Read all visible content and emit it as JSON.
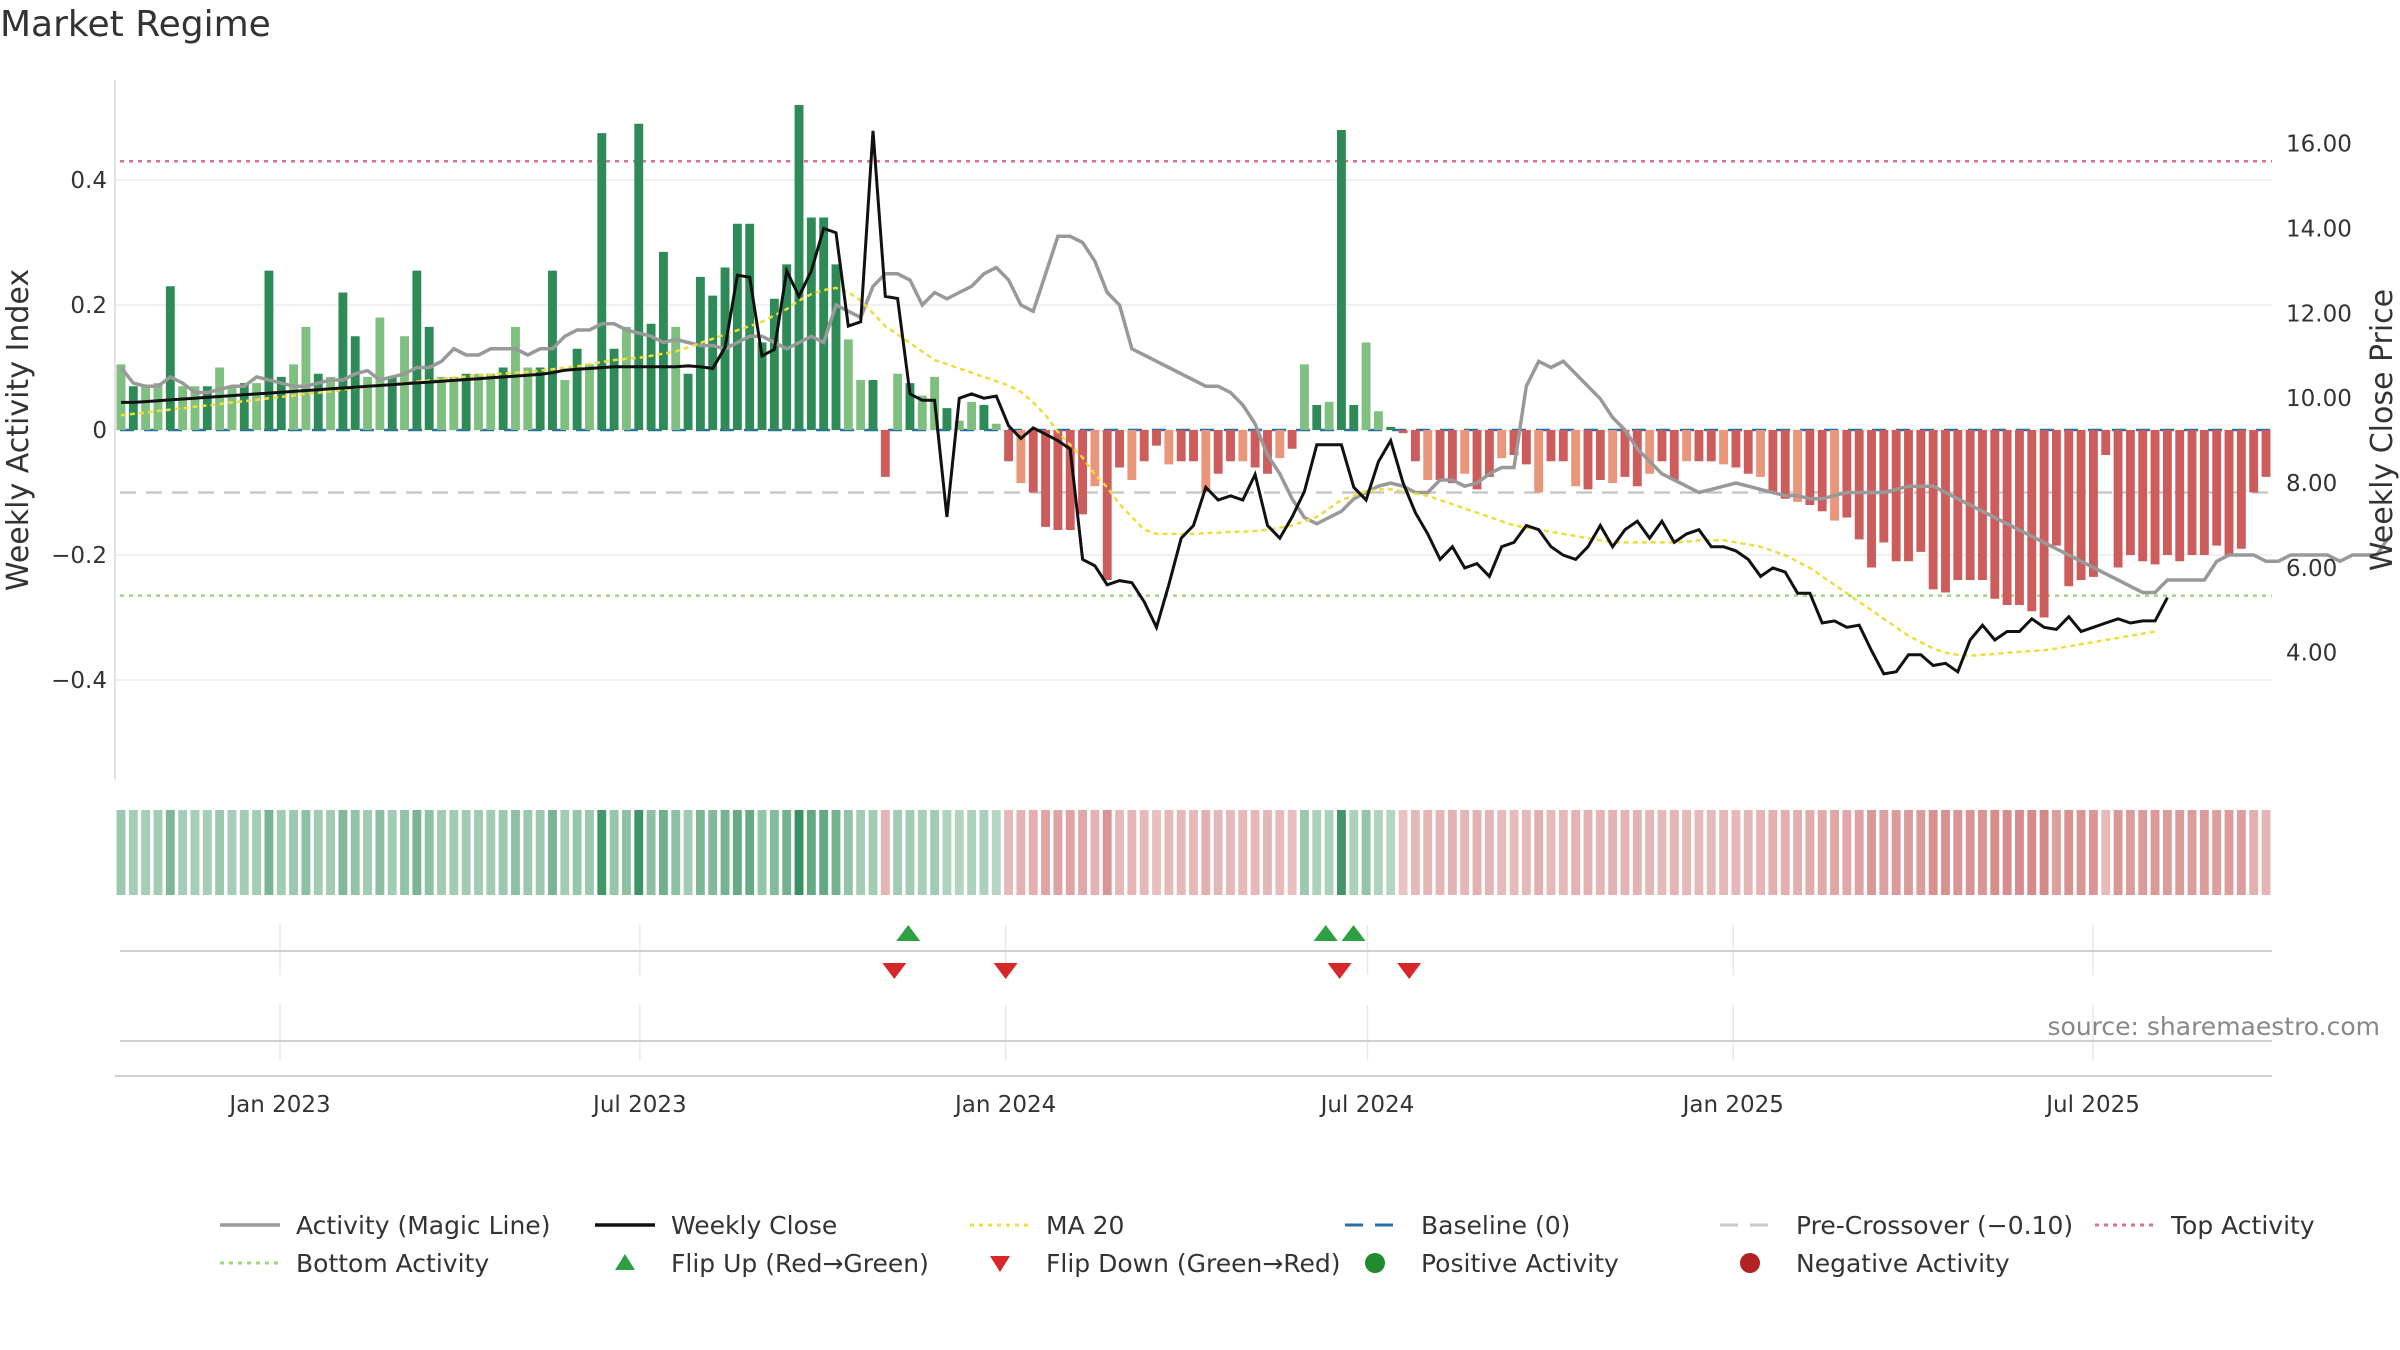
{
  "title": "Market Regime",
  "source": "source: sharemaestro.com",
  "chart_data": {
    "type": "bar",
    "title": "Market Regime",
    "ylabel": "Weekly Activity Index",
    "y2label": "Weekly Close Price",
    "ylim": [
      -0.56,
      0.56
    ],
    "y2lim": [
      1.0,
      17.5
    ],
    "yticks": [
      0.4,
      0.2,
      0,
      -0.2,
      -0.4
    ],
    "ytick_labels": [
      "0.4",
      "0.2",
      "0",
      "−0.2",
      "−0.4"
    ],
    "y2ticks": [
      16,
      14,
      12,
      10,
      8,
      6,
      4
    ],
    "y2tick_labels": [
      "16.00",
      "14.00",
      "12.00",
      "10.00",
      "8.00",
      "6.00",
      "4.00"
    ],
    "x_start": "2022-10-10",
    "x_end": "2025-09-29",
    "xticks": [
      "2023-01-01",
      "2023-07-01",
      "2024-01-01",
      "2024-07-01",
      "2025-01-01",
      "2025-07-01"
    ],
    "xtick_labels": [
      "Jan 2023",
      "Jul 2023",
      "Jan 2024",
      "Jul 2024",
      "Jan 2025",
      "Jul 2025"
    ],
    "grid": true,
    "legend_position": "bottom",
    "reference_lines": {
      "baseline": 0,
      "pre_crossover": -0.1,
      "top_activity": 0.43,
      "bottom_activity": -0.265
    },
    "series": [
      {
        "name": "Activity (Magic Line)",
        "values": [
          0.1,
          0.075,
          0.07,
          0.07,
          0.085,
          0.075,
          0.06,
          0.06,
          0.065,
          0.07,
          0.07,
          0.085,
          0.08,
          0.075,
          0.07,
          0.07,
          0.075,
          0.08,
          0.08,
          0.09,
          0.095,
          0.08,
          0.085,
          0.09,
          0.1,
          0.1,
          0.11,
          0.13,
          0.12,
          0.12,
          0.13,
          0.13,
          0.13,
          0.12,
          0.13,
          0.13,
          0.15,
          0.16,
          0.16,
          0.17,
          0.17,
          0.16,
          0.155,
          0.15,
          0.14,
          0.145,
          0.14,
          0.135,
          0.135,
          0.13,
          0.14,
          0.15,
          0.15,
          0.14,
          0.13,
          0.14,
          0.15,
          0.14,
          0.2,
          0.19,
          0.18,
          0.23,
          0.25,
          0.25,
          0.24,
          0.2,
          0.22,
          0.21,
          0.22,
          0.23,
          0.25,
          0.26,
          0.24,
          0.2,
          0.19,
          0.25,
          0.31,
          0.31,
          0.3,
          0.27,
          0.22,
          0.2,
          0.13,
          0.12,
          0.11,
          0.1,
          0.09,
          0.08,
          0.07,
          0.07,
          0.06,
          0.04,
          0.01,
          -0.04,
          -0.07,
          -0.11,
          -0.14,
          -0.15,
          -0.14,
          -0.13,
          -0.11,
          -0.1,
          -0.09,
          -0.085,
          -0.09,
          -0.1,
          -0.1,
          -0.08,
          -0.08,
          -0.09,
          -0.085,
          -0.07,
          -0.06,
          -0.06,
          0.07,
          0.11,
          0.1,
          0.11,
          0.09,
          0.07,
          0.05,
          0.02,
          0.0,
          -0.03,
          -0.05,
          -0.07,
          -0.08,
          -0.09,
          -0.1,
          -0.095,
          -0.09,
          -0.085,
          -0.09,
          -0.095,
          -0.1,
          -0.105,
          -0.105,
          -0.11,
          -0.11,
          -0.105,
          -0.1,
          -0.1,
          -0.1,
          -0.1,
          -0.095,
          -0.09,
          -0.09,
          -0.09,
          -0.1,
          -0.11,
          -0.12,
          -0.13,
          -0.14,
          -0.15,
          -0.16,
          -0.17,
          -0.18,
          -0.19,
          -0.2,
          -0.21,
          -0.22,
          -0.23,
          -0.24,
          -0.25,
          -0.26,
          -0.26,
          -0.24,
          -0.24,
          -0.24,
          -0.24,
          -0.21,
          -0.2,
          -0.2,
          -0.2,
          -0.21,
          -0.21,
          -0.2,
          -0.2,
          -0.2,
          -0.2,
          -0.21,
          -0.2,
          -0.2,
          -0.2,
          -0.17
        ]
      },
      {
        "name": "Weekly Close",
        "values": [
          9.9,
          9.9,
          9.92,
          9.94,
          9.96,
          9.98,
          10.0,
          10.02,
          10.04,
          10.06,
          10.08,
          10.1,
          10.12,
          10.14,
          10.16,
          10.18,
          10.2,
          10.22,
          10.24,
          10.26,
          10.28,
          10.3,
          10.32,
          10.34,
          10.36,
          10.38,
          10.4,
          10.42,
          10.44,
          10.46,
          10.48,
          10.5,
          10.52,
          10.54,
          10.56,
          10.6,
          10.66,
          10.68,
          10.7,
          10.72,
          10.74,
          10.74,
          10.74,
          10.74,
          10.74,
          10.74,
          10.76,
          10.74,
          10.7,
          11.2,
          12.9,
          12.85,
          11.0,
          11.15,
          13.0,
          12.4,
          13.0,
          14.0,
          13.9,
          11.7,
          11.8,
          16.3,
          12.4,
          12.35,
          10.1,
          9.95,
          9.95,
          7.2,
          10.0,
          10.1,
          10.0,
          10.05,
          9.35,
          9.05,
          9.3,
          9.15,
          9.0,
          8.8,
          6.2,
          6.05,
          5.6,
          5.7,
          5.65,
          5.2,
          4.6,
          5.6,
          6.7,
          7.0,
          7.9,
          7.6,
          7.7,
          7.6,
          8.2,
          7.0,
          6.7,
          7.2,
          7.8,
          8.9,
          8.9,
          8.9,
          7.9,
          7.6,
          8.5,
          9.0,
          8.0,
          7.3,
          6.8,
          6.2,
          6.5,
          6.0,
          6.1,
          5.8,
          6.5,
          6.6,
          7.0,
          6.9,
          6.5,
          6.3,
          6.2,
          6.5,
          7.0,
          6.5,
          6.9,
          7.1,
          6.7,
          7.1,
          6.6,
          6.8,
          6.9,
          6.5,
          6.5,
          6.4,
          6.2,
          5.8,
          6.0,
          5.9,
          5.4,
          5.4,
          4.7,
          4.75,
          4.6,
          4.65,
          4.05,
          3.5,
          3.55,
          3.95,
          3.95,
          3.7,
          3.75,
          3.55,
          4.3,
          4.65,
          4.3,
          4.5,
          4.5,
          4.8,
          4.6,
          4.55,
          4.85,
          4.5,
          4.6,
          4.7,
          4.8,
          4.7,
          4.75,
          4.75,
          5.3
        ]
      },
      {
        "name": "MA 20",
        "values": [
          9.6,
          9.63,
          9.66,
          9.7,
          9.73,
          9.76,
          9.8,
          9.83,
          9.86,
          9.9,
          9.93,
          9.96,
          10.0,
          10.03,
          10.06,
          10.1,
          10.13,
          10.16,
          10.2,
          10.24,
          10.27,
          10.3,
          10.33,
          10.36,
          10.39,
          10.42,
          10.45,
          10.48,
          10.51,
          10.54,
          10.56,
          10.58,
          10.6,
          10.62,
          10.65,
          10.68,
          10.72,
          10.75,
          10.8,
          10.85,
          10.9,
          10.93,
          10.95,
          11.0,
          11.05,
          11.1,
          11.2,
          11.3,
          11.4,
          11.5,
          11.6,
          11.7,
          11.8,
          11.95,
          12.1,
          12.3,
          12.45,
          12.55,
          12.6,
          12.5,
          12.3,
          12.0,
          11.7,
          11.5,
          11.3,
          11.1,
          10.9,
          10.8,
          10.7,
          10.6,
          10.5,
          10.4,
          10.3,
          10.15,
          9.9,
          9.6,
          9.2,
          8.9,
          8.6,
          8.2,
          7.9,
          7.5,
          7.2,
          6.9,
          6.8,
          6.8,
          6.8,
          6.8,
          6.82,
          6.83,
          6.85,
          6.85,
          6.87,
          6.9,
          6.95,
          7.0,
          7.1,
          7.2,
          7.4,
          7.6,
          7.7,
          7.8,
          7.85,
          7.85,
          7.8,
          7.75,
          7.7,
          7.6,
          7.5,
          7.4,
          7.3,
          7.2,
          7.1,
          7.0,
          6.95,
          6.9,
          6.85,
          6.8,
          6.75,
          6.7,
          6.65,
          6.6,
          6.6,
          6.6,
          6.6,
          6.6,
          6.6,
          6.62,
          6.65,
          6.65,
          6.65,
          6.6,
          6.55,
          6.5,
          6.4,
          6.3,
          6.15,
          6.0,
          5.8,
          5.6,
          5.4,
          5.2,
          5.0,
          4.8,
          4.6,
          4.4,
          4.25,
          4.1,
          4.0,
          3.95,
          3.93,
          3.95,
          3.97,
          4.0,
          4.02,
          4.04,
          4.06,
          4.1,
          4.15,
          4.2,
          4.25,
          4.3,
          4.35,
          4.4,
          4.45,
          4.5
        ]
      }
    ],
    "bar_series": {
      "name": "Weekly Activity Index",
      "values": [
        0.105,
        0.07,
        0.07,
        0.075,
        0.23,
        0.07,
        0.07,
        0.07,
        0.1,
        0.07,
        0.075,
        0.075,
        0.255,
        0.085,
        0.105,
        0.165,
        0.09,
        0.085,
        0.22,
        0.15,
        0.085,
        0.18,
        0.085,
        0.15,
        0.255,
        0.165,
        0.085,
        0.085,
        0.09,
        0.09,
        0.09,
        0.1,
        0.165,
        0.1,
        0.1,
        0.255,
        0.08,
        0.13,
        0.105,
        0.475,
        0.13,
        0.165,
        0.49,
        0.17,
        0.285,
        0.165,
        0.09,
        0.245,
        0.215,
        0.26,
        0.33,
        0.33,
        0.14,
        0.21,
        0.265,
        0.52,
        0.34,
        0.34,
        0.265,
        0.145,
        0.08,
        0.08,
        -0.075,
        0.09,
        0.075,
        0.055,
        0.085,
        0.035,
        0.015,
        0.045,
        0.04,
        0.01,
        -0.05,
        -0.085,
        -0.1,
        -0.155,
        -0.16,
        -0.16,
        -0.135,
        -0.09,
        -0.24,
        -0.06,
        -0.08,
        -0.05,
        -0.025,
        -0.055,
        -0.05,
        -0.05,
        -0.1,
        -0.07,
        -0.05,
        -0.05,
        -0.06,
        -0.07,
        -0.045,
        -0.03,
        0.105,
        0.04,
        0.045,
        0.48,
        0.04,
        0.14,
        0.03,
        0.005,
        -0.005,
        -0.05,
        -0.08,
        -0.08,
        -0.085,
        -0.07,
        -0.095,
        -0.075,
        -0.045,
        -0.04,
        -0.055,
        -0.1,
        -0.05,
        -0.05,
        -0.09,
        -0.095,
        -0.08,
        -0.085,
        -0.075,
        -0.09,
        -0.07,
        -0.05,
        -0.08,
        -0.05,
        -0.05,
        -0.05,
        -0.055,
        -0.06,
        -0.07,
        -0.075,
        -0.1,
        -0.11,
        -0.115,
        -0.12,
        -0.13,
        -0.145,
        -0.14,
        -0.175,
        -0.22,
        -0.18,
        -0.21,
        -0.21,
        -0.195,
        -0.255,
        -0.26,
        -0.24,
        -0.24,
        -0.24,
        -0.27,
        -0.28,
        -0.28,
        -0.29,
        -0.3,
        -0.185,
        -0.25,
        -0.24,
        -0.235,
        -0.04,
        -0.22,
        -0.2,
        -0.21,
        -0.215,
        -0.2,
        -0.21,
        -0.2,
        -0.2,
        -0.185,
        -0.2,
        -0.19,
        -0.1,
        -0.075
      ]
    },
    "flips_up": [
      "2023-11-13",
      "2024-06-10",
      "2024-06-24"
    ],
    "flips_down": [
      "2023-11-06",
      "2024-01-01",
      "2024-06-17",
      "2024-07-22"
    ],
    "legend": [
      {
        "label": "Activity (Magic Line)",
        "style": "line",
        "color": "#999999"
      },
      {
        "label": "Weekly Close",
        "style": "line",
        "color": "#111111"
      },
      {
        "label": "MA 20",
        "style": "dotted",
        "color": "#f0dc3a"
      },
      {
        "label": "Baseline (0)",
        "style": "dashed",
        "color": "#2a6fa8"
      },
      {
        "label": "Pre-Crossover (−0.10)",
        "style": "dashed",
        "color": "#c8c8c8"
      },
      {
        "label": "Top Activity",
        "style": "dotted",
        "color": "#e07090"
      },
      {
        "label": "Bottom Activity",
        "style": "dotted",
        "color": "#9ed67a"
      },
      {
        "label": "Flip Up (Red→Green)",
        "style": "triangle-up",
        "color": "#2ea043"
      },
      {
        "label": "Flip Down (Green→Red)",
        "style": "triangle-down",
        "color": "#d62828"
      },
      {
        "label": "Positive Activity",
        "style": "circle",
        "color": "#1f8a2e"
      },
      {
        "label": "Negative Activity",
        "style": "circle",
        "color": "#b22222"
      }
    ],
    "colors": {
      "positive_strong": "#2e8b57",
      "positive_light": "#7fbf7f",
      "negative_strong": "#cd5c5c",
      "negative_light": "#e9967a",
      "magic_line": "#999999",
      "close": "#111111",
      "ma20": "#f0dc3a",
      "baseline": "#2a6fa8",
      "pre_crossover": "#c8c8c8",
      "top": "#e07090",
      "bottom": "#9ed67a"
    }
  }
}
